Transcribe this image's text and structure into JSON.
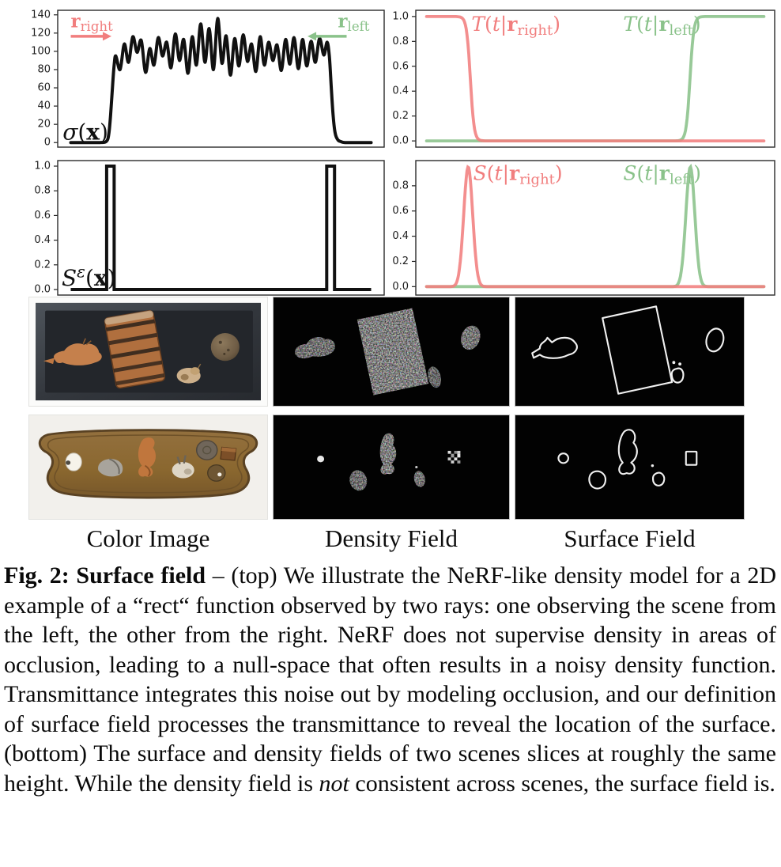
{
  "figure": {
    "label": "Fig. 2:",
    "title": "Surface field"
  },
  "caption_segments": [
    {
      "text": "Fig. 2: Surface field",
      "bold": true
    },
    {
      "text": " – (top) We illustrate the NeRF-like density model for a 2D example of a “rect“ function observed by two rays: one observing the scene from the left, the other from the right. NeRF does not supervise density in areas of occlusion, leading to a null-space that often results in a noisy density function. Transmittance integrates this noise out by modeling occlusion, and our definition of surface field processes the transmittance to reveal the location of the surface. (bottom) The surface and density fields of two scenes slices at roughly the same height. While the density field is "
    },
    {
      "text": "not",
      "italic": true
    },
    {
      "text": " consistent across scenes, the surface field is."
    }
  ],
  "images": {
    "columns": [
      "Color Image",
      "Density Field",
      "Surface Field"
    ],
    "rows": [
      {
        "cells": [
          "top-down photo: dark board with deer figurine, striped round box, ball, small animal",
          "grayscale noisy density slice of scene 1",
          "white surface outlines of scene 1"
        ]
      },
      {
        "cells": [
          "top-down photo: brown scalloped wooden board with egg, stone, figurines, disc, cube, knob",
          "grayscale noisy density slice of scene 2",
          "white surface outlines of scene 2"
        ]
      }
    ]
  },
  "colors": {
    "ray_right": "#f17e7e",
    "ray_left": "#8ac28a",
    "curve_black": "#111111"
  },
  "chart_data": [
    {
      "type": "line",
      "title": "",
      "xlabel": "",
      "ylabel": "",
      "xlim": [
        0,
        1
      ],
      "ylim": [
        -5,
        145
      ],
      "yticks": [
        0,
        20,
        40,
        60,
        80,
        100,
        120,
        140
      ],
      "ytick_labels": [
        "0",
        "20",
        "40",
        "60",
        "80",
        "100",
        "120",
        "140"
      ],
      "grid": false,
      "series": [
        {
          "name": "sigma(x) noisy density",
          "color": "#111111",
          "width": 4,
          "shape": "points",
          "points": [
            [
              0.04,
              0
            ],
            [
              0.1,
              0
            ],
            [
              0.13,
              0
            ],
            [
              0.148,
              1
            ],
            [
              0.156,
              8
            ],
            [
              0.162,
              30
            ],
            [
              0.168,
              62
            ],
            [
              0.173,
              85
            ],
            [
              0.178,
              95
            ],
            [
              0.191,
              80
            ],
            [
              0.204,
              108
            ],
            [
              0.217,
              88
            ],
            [
              0.23,
              116
            ],
            [
              0.243,
              99
            ],
            [
              0.256,
              112
            ],
            [
              0.269,
              77
            ],
            [
              0.282,
              103
            ],
            [
              0.295,
              85
            ],
            [
              0.308,
              115
            ],
            [
              0.321,
              95
            ],
            [
              0.334,
              110
            ],
            [
              0.347,
              82
            ],
            [
              0.36,
              119
            ],
            [
              0.373,
              90
            ],
            [
              0.386,
              113
            ],
            [
              0.399,
              76
            ],
            [
              0.412,
              116
            ],
            [
              0.425,
              85
            ],
            [
              0.438,
              130
            ],
            [
              0.451,
              88
            ],
            [
              0.464,
              125
            ],
            [
              0.477,
              80
            ],
            [
              0.49,
              136
            ],
            [
              0.503,
              87
            ],
            [
              0.516,
              117
            ],
            [
              0.529,
              74
            ],
            [
              0.542,
              114
            ],
            [
              0.555,
              84
            ],
            [
              0.568,
              118
            ],
            [
              0.581,
              89
            ],
            [
              0.594,
              108
            ],
            [
              0.607,
              78
            ],
            [
              0.62,
              116
            ],
            [
              0.633,
              85
            ],
            [
              0.646,
              110
            ],
            [
              0.659,
              90
            ],
            [
              0.672,
              107
            ],
            [
              0.685,
              79
            ],
            [
              0.698,
              113
            ],
            [
              0.711,
              86
            ],
            [
              0.724,
              115
            ],
            [
              0.737,
              81
            ],
            [
              0.75,
              113
            ],
            [
              0.763,
              84
            ],
            [
              0.776,
              111
            ],
            [
              0.789,
              88
            ],
            [
              0.802,
              114
            ],
            [
              0.815,
              96
            ],
            [
              0.825,
              110
            ],
            [
              0.832,
              95
            ],
            [
              0.838,
              60
            ],
            [
              0.844,
              28
            ],
            [
              0.85,
              10
            ],
            [
              0.858,
              3
            ],
            [
              0.868,
              1
            ],
            [
              0.88,
              0
            ],
            [
              0.92,
              0
            ],
            [
              0.96,
              0
            ]
          ]
        }
      ],
      "annotations": [
        {
          "kind": "mathlabel",
          "parts": [
            {
              "t": "σ",
              "s": "it"
            },
            {
              "t": "(",
              "s": "rm"
            },
            {
              "t": "x",
              "s": "b"
            },
            {
              "t": ")",
              "s": "rm"
            }
          ],
          "fx": 0.015,
          "fy": 0.945,
          "size": 28,
          "color": "#111111"
        },
        {
          "kind": "mathlabel",
          "parts": [
            {
              "t": "r",
              "s": "b"
            },
            {
              "t": "right",
              "s": "sub"
            }
          ],
          "fx": 0.04,
          "fy": 0.125,
          "size": 23,
          "color": "#f17e7e"
        },
        {
          "kind": "arrow",
          "fx1": 0.04,
          "fx2": 0.155,
          "fy": 0.19,
          "color": "#f17e7e"
        },
        {
          "kind": "mathlabel",
          "parts": [
            {
              "t": "r",
              "s": "b"
            },
            {
              "t": "left",
              "s": "sub"
            }
          ],
          "fx": 0.955,
          "fy": 0.125,
          "size": 23,
          "color": "#8ac28a",
          "anchor": "end"
        },
        {
          "kind": "arrow",
          "fx1": 0.885,
          "fx2": 0.775,
          "fy": 0.19,
          "color": "#8ac28a"
        }
      ]
    },
    {
      "type": "line",
      "title": "",
      "xlabel": "",
      "ylabel": "",
      "xlim": [
        0,
        1
      ],
      "ylim": [
        -0.05,
        1.05
      ],
      "yticks": [
        0,
        0.2,
        0.4,
        0.6,
        0.8,
        1.0
      ],
      "ytick_labels": [
        "0.0",
        "0.2",
        "0.4",
        "0.6",
        "0.8",
        "1.0"
      ],
      "grid": false,
      "series": [
        {
          "name": "T(t|r_left) transmittance",
          "color": "#8ac28a",
          "width": 3.8,
          "shape": "sigmoid",
          "dir": "up",
          "c": 0.764,
          "k": 190,
          "span": [
            0.03,
            0.97
          ]
        },
        {
          "name": "T(t|r_right) transmittance",
          "color": "#f17e7e",
          "width": 3.8,
          "shape": "sigmoid",
          "dir": "down",
          "c": 0.152,
          "k": 190,
          "span": [
            0.03,
            0.97
          ]
        }
      ],
      "annotations": [
        {
          "kind": "mathlabel",
          "parts": [
            {
              "t": "T",
              "s": "it"
            },
            {
              "t": "(",
              "s": "rm"
            },
            {
              "t": "t",
              "s": "it"
            },
            {
              "t": "|",
              "s": "rm"
            },
            {
              "t": "r",
              "s": "b"
            },
            {
              "t": "right",
              "s": "sub"
            },
            {
              "t": ")",
              "s": "rm"
            }
          ],
          "fx": 0.155,
          "fy": 0.15,
          "size": 25,
          "color": "#f17e7e"
        },
        {
          "kind": "mathlabel",
          "parts": [
            {
              "t": "T",
              "s": "it"
            },
            {
              "t": "(",
              "s": "rm"
            },
            {
              "t": "t",
              "s": "it"
            },
            {
              "t": "|",
              "s": "rm"
            },
            {
              "t": "r",
              "s": "b"
            },
            {
              "t": "left",
              "s": "sub"
            },
            {
              "t": ")",
              "s": "rm"
            }
          ],
          "fx": 0.578,
          "fy": 0.15,
          "size": 25,
          "color": "#8ac28a"
        }
      ]
    },
    {
      "type": "line",
      "title": "",
      "xlabel": "",
      "ylabel": "",
      "xlim": [
        0,
        1
      ],
      "ylim": [
        -0.045,
        1.045
      ],
      "yticks": [
        0,
        0.2,
        0.4,
        0.6,
        0.8,
        1.0
      ],
      "ytick_labels": [
        "0.0",
        "0.2",
        "0.4",
        "0.6",
        "0.8",
        "1.0"
      ],
      "grid": false,
      "series": [
        {
          "name": "S^eps(x) surface indicator",
          "color": "#111111",
          "width": 4,
          "shape": "pulses",
          "pulses": [
            [
              0.15,
              0.173
            ],
            [
              0.824,
              0.848
            ]
          ],
          "height": 1,
          "span": [
            0.04,
            0.96
          ]
        }
      ],
      "annotations": [
        {
          "kind": "mathlabel",
          "parts": [
            {
              "t": "S",
              "s": "it"
            },
            {
              "t": "ε",
              "s": "sup"
            },
            {
              "t": "(",
              "s": "rm"
            },
            {
              "t": "x",
              "s": "b"
            },
            {
              "t": ")",
              "s": "rm"
            }
          ],
          "fx": 0.012,
          "fy": 0.93,
          "size": 28,
          "color": "#111111"
        }
      ]
    },
    {
      "type": "line",
      "title": "",
      "xlabel": "",
      "ylabel": "",
      "xlim": [
        0,
        1
      ],
      "ylim": [
        -0.067,
        1.0
      ],
      "yticks": [
        0,
        0.2,
        0.4,
        0.6,
        0.8
      ],
      "ytick_labels": [
        "0.0",
        "0.2",
        "0.4",
        "0.6",
        "0.8"
      ],
      "grid": false,
      "series": [
        {
          "name": "S(t|r_left) surface distribution",
          "color": "#8ac28a",
          "width": 3.8,
          "shape": "gauss",
          "c": 0.765,
          "sigma": 0.0125,
          "peak": 0.95,
          "span": [
            0.03,
            0.97
          ]
        },
        {
          "name": "S(t|r_right) surface distribution",
          "color": "#f17e7e",
          "width": 3.8,
          "shape": "gauss",
          "c": 0.146,
          "sigma": 0.0125,
          "peak": 0.95,
          "span": [
            0.03,
            0.97
          ]
        }
      ],
      "annotations": [
        {
          "kind": "mathlabel",
          "parts": [
            {
              "t": "S",
              "s": "it"
            },
            {
              "t": "(",
              "s": "rm"
            },
            {
              "t": "t",
              "s": "it"
            },
            {
              "t": "|",
              "s": "rm"
            },
            {
              "t": "r",
              "s": "b"
            },
            {
              "t": "right",
              "s": "sub"
            },
            {
              "t": ")",
              "s": "rm"
            }
          ],
          "fx": 0.16,
          "fy": 0.145,
          "size": 25,
          "color": "#f17e7e"
        },
        {
          "kind": "mathlabel",
          "parts": [
            {
              "t": "S",
              "s": "it"
            },
            {
              "t": "(",
              "s": "rm"
            },
            {
              "t": "t",
              "s": "it"
            },
            {
              "t": "|",
              "s": "rm"
            },
            {
              "t": "r",
              "s": "b"
            },
            {
              "t": "left",
              "s": "sub"
            },
            {
              "t": ")",
              "s": "rm"
            }
          ],
          "fx": 0.578,
          "fy": 0.145,
          "size": 25,
          "color": "#8ac28a"
        }
      ]
    }
  ]
}
